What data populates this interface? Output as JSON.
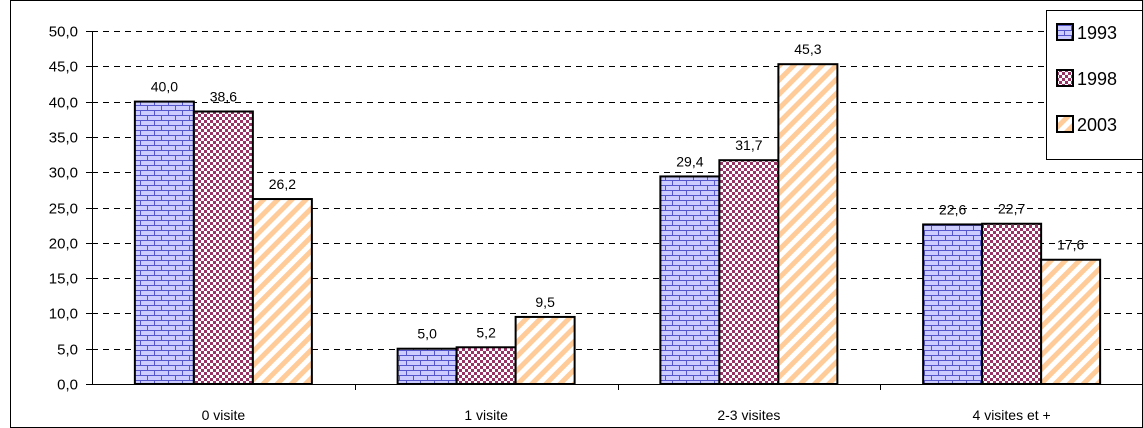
{
  "chart_data": {
    "type": "bar",
    "categories": [
      "0 visite",
      "1 visite",
      "2-3 visites",
      "4 visites et +"
    ],
    "series": [
      {
        "name": "1993",
        "values": [
          40.0,
          5.0,
          29.4,
          22.6
        ],
        "value_labels": [
          "40,0",
          "5,0",
          "29,4",
          "22,6"
        ],
        "pattern": "brick",
        "color": "#ccccff"
      },
      {
        "name": "1998",
        "values": [
          38.6,
          5.2,
          31.7,
          22.7
        ],
        "value_labels": [
          "38,6",
          "5,2",
          "31,7",
          "22,7"
        ],
        "pattern": "dots",
        "color": "#993366"
      },
      {
        "name": "2003",
        "values": [
          26.2,
          9.5,
          45.3,
          17.6
        ],
        "value_labels": [
          "26,2",
          "9,5",
          "45,3",
          "17,6"
        ],
        "pattern": "diagonal-stripes",
        "color": "#ffcc99"
      }
    ],
    "yticks": [
      "0,0",
      "5,0",
      "10,0",
      "15,0",
      "20,0",
      "25,0",
      "30,0",
      "35,0",
      "40,0",
      "45,0",
      "50,0"
    ],
    "ylim": [
      0,
      50
    ],
    "ystep": 5,
    "grid": "dashed-horizontal",
    "legend_position": "top-right",
    "title": "",
    "xlabel": "",
    "ylabel": ""
  }
}
